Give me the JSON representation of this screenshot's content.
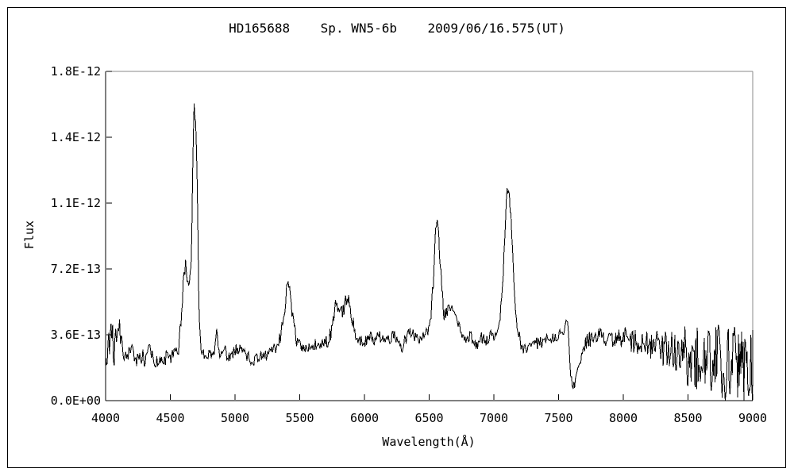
{
  "colors": {
    "background": "#ffffff",
    "line": "#000000",
    "axis_primary": "#000000",
    "axis_secondary": "#8a8a8a",
    "text": "#000000"
  },
  "chart": {
    "title": "HD165688    Sp. WN5-6b    2009/06/16.575(UT)",
    "y_axis": {
      "label": "Flux",
      "tick_labels": [
        "0.0E+00",
        "3.6E-13",
        "7.2E-13",
        "1.1E-12",
        "1.4E-12",
        "1.8E-12"
      ],
      "tick_values": [
        0,
        3.6e-13,
        7.2e-13,
        1.08e-12,
        1.44e-12,
        1.8e-12
      ]
    },
    "x_axis": {
      "label": "Wavelength(Å)",
      "tick_labels": [
        "4000",
        "4500",
        "5000",
        "5500",
        "6000",
        "6500",
        "7000",
        "7500",
        "8000",
        "8500",
        "9000"
      ],
      "tick_values": [
        4000,
        4500,
        5000,
        5500,
        6000,
        6500,
        7000,
        7500,
        8000,
        8500,
        9000
      ]
    }
  },
  "chart_data": {
    "type": "line",
    "title": "HD165688    Sp. WN5-6b    2009/06/16.575(UT)",
    "xlabel": "Wavelength(Å)",
    "ylabel": "Flux",
    "xlim": [
      4000,
      9000
    ],
    "ylim": [
      0,
      1.8e-12
    ],
    "grid": false,
    "legend": false,
    "line_color": "#000000",
    "y_values_scale": 1e-13,
    "sample_step": 6,
    "noise_seed": 20090616,
    "features": [
      {
        "wavelength": 4620,
        "peak_flux": 7.4e-13,
        "kind": "emission"
      },
      {
        "wavelength": 4686,
        "peak_flux": 1.66e-12,
        "kind": "emission"
      },
      {
        "wavelength": 4860,
        "peak_flux": 3.9e-13,
        "kind": "emission"
      },
      {
        "wavelength": 5411,
        "peak_flux": 6.5e-13,
        "kind": "emission"
      },
      {
        "wavelength": 5800,
        "peak_flux": 5.5e-13,
        "kind": "emission"
      },
      {
        "wavelength": 5876,
        "peak_flux": 5.8e-13,
        "kind": "emission"
      },
      {
        "wavelength": 6560,
        "peak_flux": 1.03e-12,
        "kind": "emission"
      },
      {
        "wavelength": 6675,
        "peak_flux": 5.4e-13,
        "kind": "emission"
      },
      {
        "wavelength": 7105,
        "peak_flux": 1.18e-12,
        "kind": "emission"
      },
      {
        "wavelength": 7610,
        "peak_flux": 7e-14,
        "kind": "absorption"
      }
    ],
    "envelope_points": [
      [
        4000,
        1.4
      ],
      [
        4008,
        2.2
      ],
      [
        4015,
        1.8
      ],
      [
        4022,
        3.0
      ],
      [
        4030,
        2.6
      ],
      [
        4036,
        4.6
      ],
      [
        4042,
        5.3
      ],
      [
        4048,
        4.4
      ],
      [
        4055,
        3.2
      ],
      [
        4065,
        2.6
      ],
      [
        4075,
        3.0
      ],
      [
        4085,
        3.4
      ],
      [
        4092,
        4.4
      ],
      [
        4100,
        5.1
      ],
      [
        4108,
        4.2
      ],
      [
        4118,
        3.0
      ],
      [
        4130,
        2.4
      ],
      [
        4150,
        2.2
      ],
      [
        4170,
        2.4
      ],
      [
        4195,
        2.9
      ],
      [
        4210,
        2.5
      ],
      [
        4230,
        2.1
      ],
      [
        4260,
        2.2
      ],
      [
        4285,
        2.4
      ],
      [
        4305,
        2.2
      ],
      [
        4330,
        2.8
      ],
      [
        4342,
        3.2
      ],
      [
        4356,
        2.5
      ],
      [
        4380,
        2.1
      ],
      [
        4410,
        2.3
      ],
      [
        4440,
        2.2
      ],
      [
        4470,
        2.4
      ],
      [
        4500,
        2.2
      ],
      [
        4525,
        2.6
      ],
      [
        4540,
        2.9
      ],
      [
        4555,
        2.7
      ],
      [
        4572,
        3.4
      ],
      [
        4585,
        4.6
      ],
      [
        4598,
        6.2
      ],
      [
        4608,
        6.9
      ],
      [
        4616,
        7.4
      ],
      [
        4626,
        6.8
      ],
      [
        4634,
        7.1
      ],
      [
        4642,
        6.6
      ],
      [
        4650,
        6.3
      ],
      [
        4658,
        7.0
      ],
      [
        4666,
        9.5
      ],
      [
        4673,
        12.5
      ],
      [
        4679,
        15.2
      ],
      [
        4683,
        16.3
      ],
      [
        4686,
        16.6
      ],
      [
        4690,
        15.7
      ],
      [
        4694,
        15.9
      ],
      [
        4699,
        15.2
      ],
      [
        4703,
        13.8
      ],
      [
        4708,
        11.6
      ],
      [
        4713,
        9.2
      ],
      [
        4718,
        6.6
      ],
      [
        4723,
        4.6
      ],
      [
        4729,
        3.5
      ],
      [
        4736,
        2.9
      ],
      [
        4750,
        2.5
      ],
      [
        4775,
        2.4
      ],
      [
        4800,
        2.6
      ],
      [
        4820,
        2.4
      ],
      [
        4840,
        2.7
      ],
      [
        4852,
        3.6
      ],
      [
        4860,
        3.9
      ],
      [
        4868,
        3.2
      ],
      [
        4880,
        2.6
      ],
      [
        4900,
        2.5
      ],
      [
        4915,
        2.9
      ],
      [
        4930,
        2.6
      ],
      [
        4950,
        2.3
      ],
      [
        4975,
        2.5
      ],
      [
        5000,
        2.7
      ],
      [
        5030,
        2.9
      ],
      [
        5060,
        2.6
      ],
      [
        5090,
        2.4
      ],
      [
        5120,
        2.3
      ],
      [
        5150,
        2.2
      ],
      [
        5180,
        2.4
      ],
      [
        5210,
        2.4
      ],
      [
        5240,
        2.5
      ],
      [
        5270,
        2.6
      ],
      [
        5300,
        2.8
      ],
      [
        5330,
        3.0
      ],
      [
        5355,
        3.6
      ],
      [
        5375,
        4.6
      ],
      [
        5392,
        5.6
      ],
      [
        5405,
        6.4
      ],
      [
        5418,
        6.4
      ],
      [
        5430,
        5.5
      ],
      [
        5442,
        4.9
      ],
      [
        5455,
        4.1
      ],
      [
        5470,
        3.5
      ],
      [
        5490,
        3.1
      ],
      [
        5515,
        3.0
      ],
      [
        5540,
        2.9
      ],
      [
        5565,
        2.8
      ],
      [
        5590,
        3.0
      ],
      [
        5620,
        3.1
      ],
      [
        5650,
        3.0
      ],
      [
        5680,
        3.1
      ],
      [
        5710,
        3.2
      ],
      [
        5740,
        3.6
      ],
      [
        5765,
        4.5
      ],
      [
        5782,
        5.4
      ],
      [
        5795,
        5.2
      ],
      [
        5810,
        4.7
      ],
      [
        5825,
        4.9
      ],
      [
        5840,
        5.1
      ],
      [
        5858,
        5.4
      ],
      [
        5872,
        5.7
      ],
      [
        5886,
        5.4
      ],
      [
        5900,
        4.7
      ],
      [
        5918,
        4.0
      ],
      [
        5938,
        3.5
      ],
      [
        5960,
        3.3
      ],
      [
        5990,
        3.2
      ],
      [
        6020,
        3.3
      ],
      [
        6050,
        3.5
      ],
      [
        6080,
        3.3
      ],
      [
        6110,
        3.6
      ],
      [
        6140,
        3.4
      ],
      [
        6170,
        3.3
      ],
      [
        6200,
        3.4
      ],
      [
        6225,
        3.7
      ],
      [
        6250,
        3.3
      ],
      [
        6270,
        3.1
      ],
      [
        6288,
        2.7
      ],
      [
        6305,
        3.2
      ],
      [
        6330,
        3.5
      ],
      [
        6355,
        3.8
      ],
      [
        6380,
        3.6
      ],
      [
        6410,
        3.4
      ],
      [
        6440,
        3.4
      ],
      [
        6470,
        3.6
      ],
      [
        6495,
        4.0
      ],
      [
        6515,
        4.8
      ],
      [
        6530,
        6.2
      ],
      [
        6542,
        8.0
      ],
      [
        6552,
        9.6
      ],
      [
        6560,
        10.2
      ],
      [
        6568,
        9.6
      ],
      [
        6578,
        8.4
      ],
      [
        6590,
        7.2
      ],
      [
        6602,
        5.8
      ],
      [
        6615,
        4.7
      ],
      [
        6628,
        4.6
      ],
      [
        6642,
        4.8
      ],
      [
        6658,
        5.1
      ],
      [
        6672,
        5.4
      ],
      [
        6686,
        5.2
      ],
      [
        6700,
        4.9
      ],
      [
        6718,
        4.5
      ],
      [
        6738,
        4.1
      ],
      [
        6758,
        3.7
      ],
      [
        6780,
        3.4
      ],
      [
        6800,
        3.4
      ],
      [
        6820,
        3.5
      ],
      [
        6845,
        3.3
      ],
      [
        6865,
        3.0
      ],
      [
        6880,
        3.1
      ],
      [
        6900,
        3.5
      ],
      [
        6925,
        3.3
      ],
      [
        6950,
        3.3
      ],
      [
        6975,
        3.6
      ],
      [
        7000,
        3.5
      ],
      [
        7025,
        3.9
      ],
      [
        7045,
        4.4
      ],
      [
        7058,
        5.4
      ],
      [
        7068,
        6.2
      ],
      [
        7075,
        7.2
      ],
      [
        7085,
        9.0
      ],
      [
        7095,
        10.6
      ],
      [
        7103,
        11.6
      ],
      [
        7112,
        11.4
      ],
      [
        7122,
        11.0
      ],
      [
        7132,
        10.0
      ],
      [
        7142,
        8.6
      ],
      [
        7152,
        7.2
      ],
      [
        7163,
        5.6
      ],
      [
        7174,
        4.4
      ],
      [
        7186,
        3.7
      ],
      [
        7200,
        3.3
      ],
      [
        7220,
        3.0
      ],
      [
        7245,
        2.8
      ],
      [
        7270,
        2.8
      ],
      [
        7300,
        3.0
      ],
      [
        7330,
        3.1
      ],
      [
        7360,
        3.2
      ],
      [
        7395,
        3.3
      ],
      [
        7430,
        3.4
      ],
      [
        7465,
        3.5
      ],
      [
        7500,
        3.6
      ],
      [
        7530,
        3.8
      ],
      [
        7548,
        4.1
      ],
      [
        7560,
        4.7
      ],
      [
        7572,
        4.1
      ],
      [
        7582,
        2.6
      ],
      [
        7594,
        1.3
      ],
      [
        7608,
        0.8
      ],
      [
        7622,
        0.9
      ],
      [
        7640,
        1.3
      ],
      [
        7660,
        1.9
      ],
      [
        7682,
        2.6
      ],
      [
        7705,
        3.1
      ],
      [
        7730,
        3.3
      ],
      [
        7760,
        3.3
      ],
      [
        7790,
        3.4
      ],
      [
        7820,
        3.6
      ],
      [
        7850,
        3.4
      ],
      [
        7880,
        3.5
      ],
      [
        7910,
        3.4
      ],
      [
        7940,
        3.3
      ],
      [
        7970,
        3.5
      ],
      [
        8000,
        3.4
      ],
      [
        8035,
        3.6
      ],
      [
        8070,
        3.3
      ],
      [
        8105,
        3.1
      ],
      [
        8140,
        3.2
      ],
      [
        8175,
        3.1
      ],
      [
        8210,
        3.0
      ],
      [
        8250,
        2.9
      ],
      [
        8290,
        2.8
      ],
      [
        8330,
        2.7
      ],
      [
        8370,
        2.7
      ],
      [
        8410,
        2.6
      ],
      [
        8450,
        2.4
      ],
      [
        8490,
        2.4
      ],
      [
        8530,
        2.3
      ],
      [
        8570,
        2.3
      ],
      [
        8610,
        2.3
      ],
      [
        8650,
        2.2
      ],
      [
        8690,
        2.1
      ],
      [
        8730,
        2.1
      ],
      [
        8770,
        2.0
      ],
      [
        8810,
        2.0
      ],
      [
        8850,
        2.0
      ],
      [
        8890,
        1.9
      ],
      [
        8930,
        1.9
      ],
      [
        8965,
        1.8
      ],
      [
        9000,
        1.8
      ]
    ],
    "noise_regions": [
      [
        4000,
        4130,
        1.1
      ],
      [
        4130,
        4560,
        0.45
      ],
      [
        4560,
        4660,
        0.6
      ],
      [
        4660,
        4730,
        0.4
      ],
      [
        4730,
        5320,
        0.32
      ],
      [
        5320,
        5480,
        0.45
      ],
      [
        5480,
        5700,
        0.32
      ],
      [
        5700,
        5940,
        0.45
      ],
      [
        5940,
        6470,
        0.3
      ],
      [
        6470,
        6640,
        0.4
      ],
      [
        6640,
        6780,
        0.35
      ],
      [
        6780,
        7020,
        0.3
      ],
      [
        7020,
        7200,
        0.4
      ],
      [
        7200,
        7540,
        0.35
      ],
      [
        7540,
        7700,
        0.25
      ],
      [
        7700,
        7980,
        0.45
      ],
      [
        7980,
        8250,
        0.7
      ],
      [
        8250,
        8450,
        1.1
      ],
      [
        8450,
        8700,
        1.7
      ],
      [
        8700,
        9001,
        2.1
      ]
    ]
  }
}
